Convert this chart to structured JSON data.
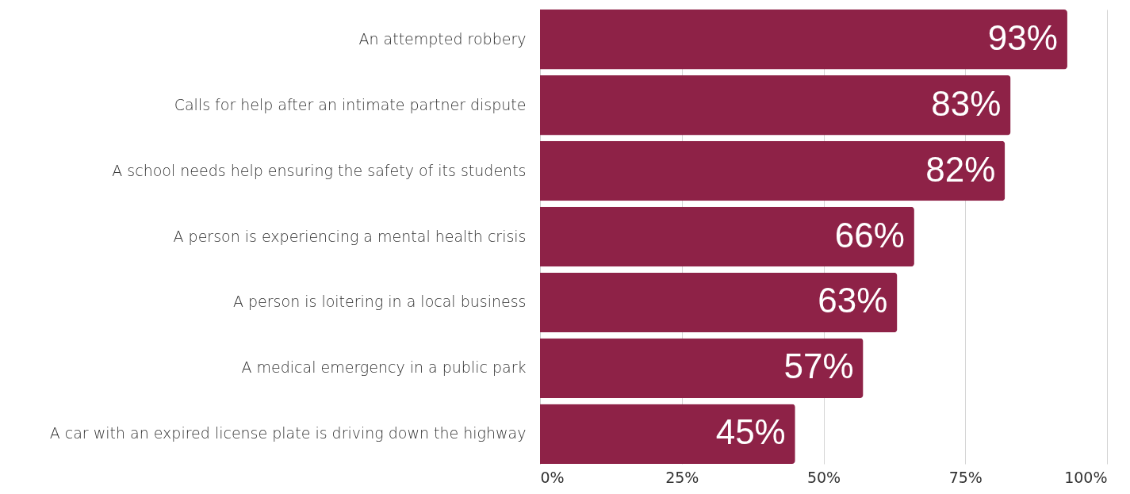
{
  "chart_data": {
    "type": "bar",
    "orientation": "horizontal",
    "categories": [
      "An attempted robbery",
      "Calls for help after an intimate partner dispute",
      "A school needs help ensuring the safety of its students",
      "A person is experiencing a mental health crisis",
      "A person is loitering in a local business",
      "A medical emergency in a public park",
      "A car with an expired license plate is driving down the highway"
    ],
    "values": [
      93,
      83,
      82,
      66,
      63,
      57,
      45
    ],
    "value_labels": [
      "93%",
      "83%",
      "82%",
      "66%",
      "63%",
      "57%",
      "45%"
    ],
    "color": "#8e2247",
    "xlim": [
      0,
      100
    ],
    "xticks": [
      {
        "value": 0,
        "label": "0%"
      },
      {
        "value": 25,
        "label": "25%"
      },
      {
        "value": 50,
        "label": "50%"
      },
      {
        "value": 75,
        "label": "75%"
      },
      {
        "value": 100,
        "label": "100%"
      }
    ],
    "grid": "x"
  }
}
